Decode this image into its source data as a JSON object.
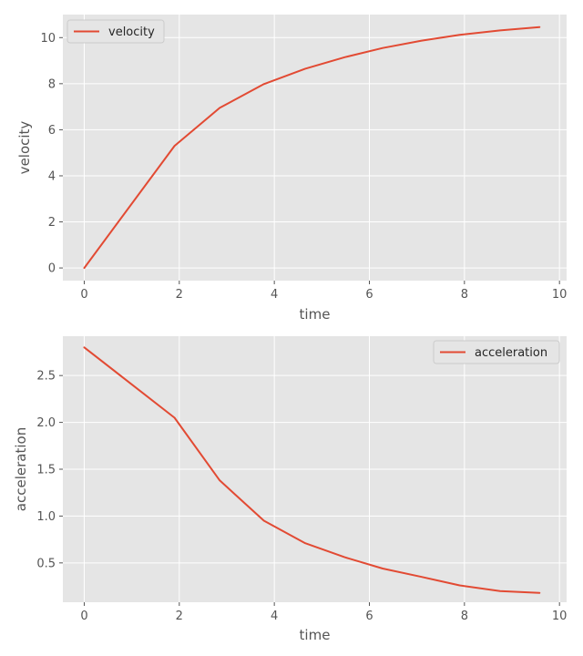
{
  "colors": {
    "plot_bg": "#e5e5e5",
    "grid": "#ffffff",
    "line": "#e24a33",
    "text": "#555555"
  },
  "chart_data": [
    {
      "type": "line",
      "xlabel": "time",
      "ylabel": "velocity",
      "xlim": [
        -0.45,
        10.15
      ],
      "ylim": [
        -0.55,
        11.0
      ],
      "xticks": [
        0,
        2,
        4,
        6,
        8,
        10
      ],
      "yticks": [
        0,
        2,
        4,
        6,
        8,
        10
      ],
      "grid": true,
      "legend": "upper-left",
      "series": [
        {
          "name": "velocity",
          "x": [
            0,
            1.9,
            2.85,
            3.78,
            4.65,
            5.48,
            6.28,
            7.1,
            7.9,
            8.75,
            9.58
          ],
          "values": [
            0,
            5.3,
            6.95,
            7.98,
            8.65,
            9.15,
            9.55,
            9.87,
            10.12,
            10.31,
            10.46
          ]
        }
      ]
    },
    {
      "type": "line",
      "xlabel": "time",
      "ylabel": "acceleration",
      "xlim": [
        -0.45,
        10.15
      ],
      "ylim": [
        0.08,
        2.92
      ],
      "xticks": [
        0,
        2,
        4,
        6,
        8,
        10
      ],
      "yticks": [
        0.5,
        1.0,
        1.5,
        2.0,
        2.5
      ],
      "ytick_labels": [
        "0.5",
        "1.0",
        "1.5",
        "2.0",
        "2.5"
      ],
      "grid": true,
      "legend": "upper-right",
      "series": [
        {
          "name": "acceleration",
          "x": [
            0,
            1.9,
            2.85,
            3.78,
            4.65,
            5.48,
            6.28,
            7.1,
            7.9,
            8.75,
            9.58
          ],
          "values": [
            2.8,
            2.05,
            1.38,
            0.95,
            0.71,
            0.56,
            0.44,
            0.35,
            0.26,
            0.2,
            0.18
          ]
        }
      ]
    }
  ]
}
